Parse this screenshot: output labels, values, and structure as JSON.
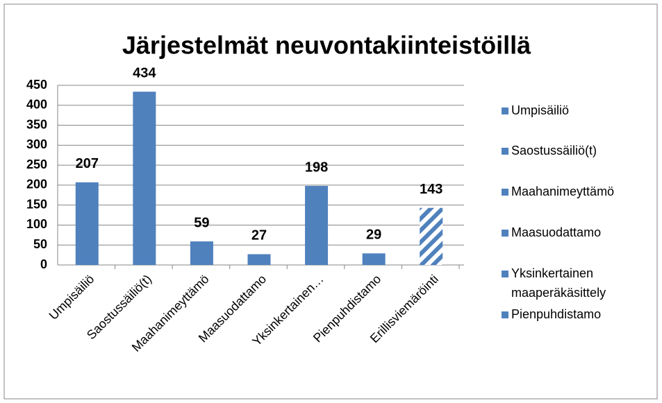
{
  "chart_data": {
    "type": "bar",
    "title": "Järjestelmät neuvontakiinteistöillä",
    "categories": [
      "Umpisäiliö",
      "Saostussäiliö(t)",
      "Maahanimeyttämö",
      "Maasuodattamo",
      "Yksinkertainen…",
      "Pienpuhdistamo",
      "Erillisviemäröinti"
    ],
    "values": [
      207,
      434,
      59,
      27,
      198,
      29,
      143
    ],
    "color": "#4f81bd",
    "hatched_categories": [
      "Erillisviemäröinti"
    ],
    "ylim": [
      0,
      450
    ],
    "yticks": [
      0,
      50,
      100,
      150,
      200,
      250,
      300,
      350,
      400,
      450
    ],
    "grid": true,
    "legend_position": "right",
    "legend": [
      "Umpisäiliö",
      "Saostussäiliö(t)",
      "Maahanimeyttämö",
      "Maasuodattamo",
      "Yksinkertainen maaperäkäsittely",
      "Pienpuhdistamo"
    ]
  }
}
